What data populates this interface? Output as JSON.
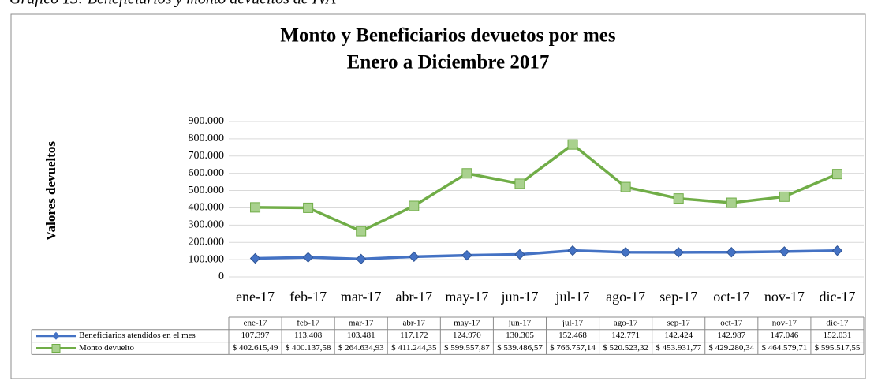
{
  "chart_data": {
    "type": "line",
    "caption": "Gráfico 13: Beneficiarios y monto devueltos de IVA",
    "title": "Monto y Beneficiarios devuetos por mes",
    "subtitle": "Enero a Diciembre 2017",
    "y_label": "Valores devueltos",
    "categories": [
      "ene-17",
      "feb-17",
      "mar-17",
      "abr-17",
      "may-17",
      "jun-17",
      "jul-17",
      "ago-17",
      "sep-17",
      "oct-17",
      "nov-17",
      "dic-17"
    ],
    "series": [
      {
        "name": "Beneficiarios atendidos en el mes",
        "color": "#4472c4",
        "marker": "diamond",
        "values": [
          107397,
          113408,
          103481,
          117172,
          124970,
          130305,
          152468,
          142771,
          142424,
          142987,
          147046,
          152031
        ],
        "value_labels": [
          "107.397",
          "113.408",
          "103.481",
          "117.172",
          "124.970",
          "130.305",
          "152.468",
          "142.771",
          "142.424",
          "142.987",
          "147.046",
          "152.031"
        ]
      },
      {
        "name": "Monto devuelto",
        "color": "#70ad47",
        "marker": "square",
        "values": [
          402615.49,
          400137.58,
          264634.93,
          411244.35,
          599557.87,
          539486.57,
          766757.14,
          520523.32,
          453931.77,
          429280.34,
          464579.71,
          595517.55
        ],
        "value_labels": [
          "$ 402.615,49",
          "$ 400.137,58",
          "$ 264.634,93",
          "$ 411.244,35",
          "$ 599.557,87",
          "$ 539.486,57",
          "$ 766.757,14",
          "$ 520.523,32",
          "$ 453.931,77",
          "$ 429.280,34",
          "$ 464.579,71",
          "$ 595.517,55"
        ]
      }
    ],
    "ylim": [
      0,
      900000
    ],
    "yticks": [
      0,
      {
        "value": 100000,
        "label": "100.000"
      },
      {
        "value": 200000,
        "label": "200.000"
      },
      {
        "value": 300000,
        "label": "300.000"
      },
      {
        "value": 400000,
        "label": "400.000"
      },
      {
        "value": 500000,
        "label": "500.000"
      },
      {
        "value": 600000,
        "label": "600.000"
      },
      {
        "value": 700000,
        "label": "700.000"
      },
      {
        "value": 800000,
        "label": "800.000"
      },
      {
        "value": 900000,
        "label": "900.000"
      }
    ],
    "grid": true,
    "data_table": true
  }
}
